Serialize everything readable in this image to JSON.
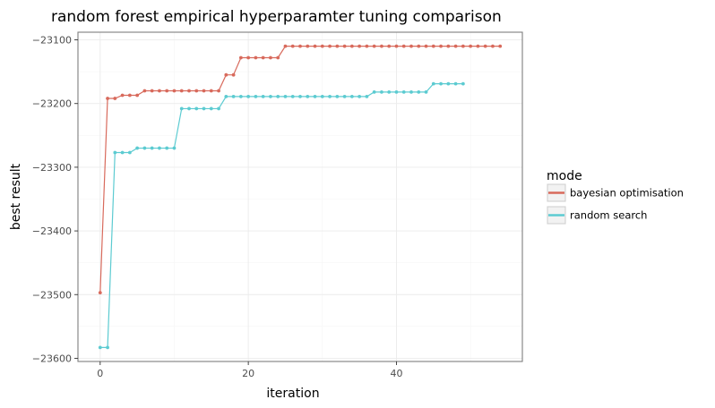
{
  "chart_data": {
    "type": "line",
    "title": "random forest empirical hyperparamter tuning comparison",
    "xlabel": "iteration",
    "ylabel": "best result",
    "xlim": [
      -3,
      57
    ],
    "ylim": [
      -23605,
      -23088
    ],
    "x_ticks": [
      0,
      20,
      40
    ],
    "x_tick_labels": [
      "0",
      "20",
      "40"
    ],
    "y_ticks": [
      -23600,
      -23500,
      -23400,
      -23300,
      -23200,
      -23100
    ],
    "y_tick_labels": [
      "−23600",
      "−23500",
      "−23400",
      "−23300",
      "−23200",
      "−23100"
    ],
    "grid": true,
    "legend": {
      "title": "mode",
      "placement": "right"
    },
    "series": [
      {
        "name": "bayesian optimisation",
        "color": "#d86a5c",
        "x": [
          0,
          1,
          2,
          3,
          4,
          5,
          6,
          7,
          8,
          9,
          10,
          11,
          12,
          13,
          14,
          15,
          16,
          17,
          18,
          19,
          20,
          21,
          22,
          23,
          24,
          25,
          26,
          27,
          28,
          29,
          30,
          31,
          32,
          33,
          34,
          35,
          36,
          37,
          38,
          39,
          40,
          41,
          42,
          43,
          44,
          45,
          46,
          47,
          48,
          49,
          50,
          51,
          52,
          53,
          54
        ],
        "values": [
          -23497,
          -23192,
          -23192,
          -23187,
          -23187,
          -23187,
          -23180,
          -23180,
          -23180,
          -23180,
          -23180,
          -23180,
          -23180,
          -23180,
          -23180,
          -23180,
          -23180,
          -23155,
          -23155,
          -23128,
          -23128,
          -23128,
          -23128,
          -23128,
          -23128,
          -23110,
          -23110,
          -23110,
          -23110,
          -23110,
          -23110,
          -23110,
          -23110,
          -23110,
          -23110,
          -23110,
          -23110,
          -23110,
          -23110,
          -23110,
          -23110,
          -23110,
          -23110,
          -23110,
          -23110,
          -23110,
          -23110,
          -23110,
          -23110,
          -23110,
          -23110,
          -23110,
          -23110,
          -23110,
          -23110
        ]
      },
      {
        "name": "random search",
        "color": "#5ccbd1",
        "x": [
          0,
          1,
          2,
          3,
          4,
          5,
          6,
          7,
          8,
          9,
          10,
          11,
          12,
          13,
          14,
          15,
          16,
          17,
          18,
          19,
          20,
          21,
          22,
          23,
          24,
          25,
          26,
          27,
          28,
          29,
          30,
          31,
          32,
          33,
          34,
          35,
          36,
          37,
          38,
          39,
          40,
          41,
          42,
          43,
          44,
          45,
          46,
          47,
          48,
          49
        ],
        "values": [
          -23583,
          -23583,
          -23277,
          -23277,
          -23277,
          -23270,
          -23270,
          -23270,
          -23270,
          -23270,
          -23270,
          -23208,
          -23208,
          -23208,
          -23208,
          -23208,
          -23208,
          -23189,
          -23189,
          -23189,
          -23189,
          -23189,
          -23189,
          -23189,
          -23189,
          -23189,
          -23189,
          -23189,
          -23189,
          -23189,
          -23189,
          -23189,
          -23189,
          -23189,
          -23189,
          -23189,
          -23189,
          -23182,
          -23182,
          -23182,
          -23182,
          -23182,
          -23182,
          -23182,
          -23182,
          -23169,
          -23169,
          -23169,
          -23169,
          -23169
        ]
      }
    ]
  }
}
